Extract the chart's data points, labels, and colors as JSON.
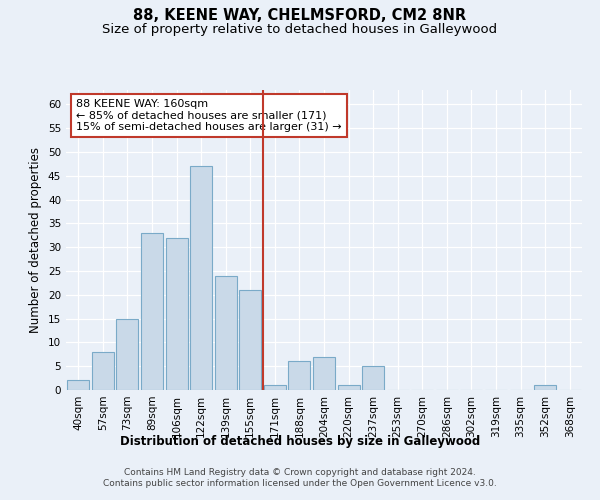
{
  "title": "88, KEENE WAY, CHELMSFORD, CM2 8NR",
  "subtitle": "Size of property relative to detached houses in Galleywood",
  "xlabel": "Distribution of detached houses by size in Galleywood",
  "ylabel": "Number of detached properties",
  "bar_labels": [
    "40sqm",
    "57sqm",
    "73sqm",
    "89sqm",
    "106sqm",
    "122sqm",
    "139sqm",
    "155sqm",
    "171sqm",
    "188sqm",
    "204sqm",
    "220sqm",
    "237sqm",
    "253sqm",
    "270sqm",
    "286sqm",
    "302sqm",
    "319sqm",
    "335sqm",
    "352sqm",
    "368sqm"
  ],
  "bar_values": [
    2,
    8,
    15,
    33,
    32,
    47,
    24,
    21,
    1,
    6,
    7,
    1,
    5,
    0,
    0,
    0,
    0,
    0,
    0,
    1,
    0
  ],
  "bar_color": "#c9d9e8",
  "bar_edgecolor": "#7aaac8",
  "bar_linewidth": 0.8,
  "vline_x": 7.5,
  "vline_color": "#c0392b",
  "vline_linewidth": 1.5,
  "annotation_text": "88 KEENE WAY: 160sqm\n← 85% of detached houses are smaller (171)\n15% of semi-detached houses are larger (31) →",
  "annotation_box_edgecolor": "#c0392b",
  "annotation_box_facecolor": "white",
  "ylim": [
    0,
    63
  ],
  "yticks": [
    0,
    5,
    10,
    15,
    20,
    25,
    30,
    35,
    40,
    45,
    50,
    55,
    60
  ],
  "footnote": "Contains HM Land Registry data © Crown copyright and database right 2024.\nContains public sector information licensed under the Open Government Licence v3.0.",
  "background_color": "#eaf0f8",
  "grid_color": "#ffffff",
  "title_fontsize": 10.5,
  "subtitle_fontsize": 9.5,
  "axis_label_fontsize": 8.5,
  "tick_fontsize": 7.5,
  "annotation_fontsize": 8,
  "footnote_fontsize": 6.5
}
